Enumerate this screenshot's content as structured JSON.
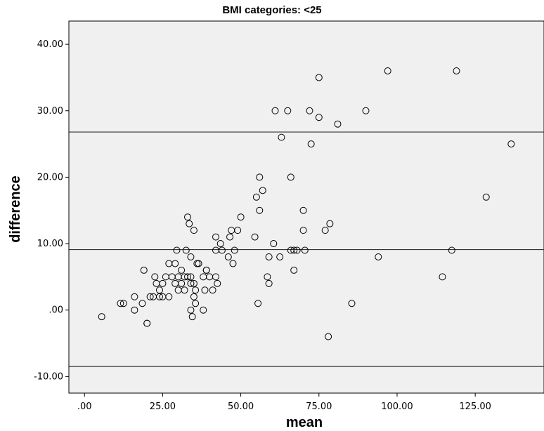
{
  "chart_data": {
    "type": "scatter",
    "title": "BMI categories: <25",
    "xlabel": "mean",
    "ylabel": "difference",
    "xlim": [
      -5,
      147
    ],
    "ylim": [
      -12.5,
      43.5
    ],
    "xticks": [
      0,
      25,
      50,
      75,
      100,
      125
    ],
    "xtick_labels": [
      ".00",
      "25.00",
      "50.00",
      "75.00",
      "100.00",
      "125.00"
    ],
    "yticks": [
      -10,
      0,
      10,
      20,
      30,
      40
    ],
    "ytick_labels": [
      "-10.00",
      ".00",
      "10.00",
      "20.00",
      "30.00",
      "40.00"
    ],
    "grid": false,
    "reference_lines": [
      26.8,
      9.1,
      -8.5
    ],
    "colors": {
      "plot_background": "#f0f0f0",
      "marker_edge": "#000000",
      "reference_line": "#333333"
    },
    "points": [
      [
        5.5,
        -1
      ],
      [
        11.5,
        1
      ],
      [
        12.5,
        1
      ],
      [
        16,
        0
      ],
      [
        16,
        2
      ],
      [
        18.5,
        1
      ],
      [
        19,
        6
      ],
      [
        20,
        -2
      ],
      [
        20,
        -2
      ],
      [
        21,
        2
      ],
      [
        22,
        2
      ],
      [
        22.5,
        5
      ],
      [
        23,
        4
      ],
      [
        24,
        3
      ],
      [
        24,
        2
      ],
      [
        25,
        2
      ],
      [
        25,
        4
      ],
      [
        26,
        5
      ],
      [
        27,
        7
      ],
      [
        27,
        2
      ],
      [
        28,
        5
      ],
      [
        29,
        7
      ],
      [
        29,
        4
      ],
      [
        29.5,
        9
      ],
      [
        30,
        3
      ],
      [
        30,
        5
      ],
      [
        31,
        4
      ],
      [
        31,
        6
      ],
      [
        32,
        3
      ],
      [
        32,
        5
      ],
      [
        32.5,
        9
      ],
      [
        33,
        5
      ],
      [
        33,
        14
      ],
      [
        33.5,
        13
      ],
      [
        34,
        0
      ],
      [
        34,
        5
      ],
      [
        34,
        4
      ],
      [
        34,
        8
      ],
      [
        34.5,
        -1
      ],
      [
        35,
        12
      ],
      [
        35,
        4
      ],
      [
        35,
        2
      ],
      [
        35.5,
        3
      ],
      [
        35.5,
        1
      ],
      [
        36,
        7
      ],
      [
        36.5,
        7
      ],
      [
        38,
        0
      ],
      [
        38,
        5
      ],
      [
        38.5,
        3
      ],
      [
        39,
        6
      ],
      [
        39,
        6
      ],
      [
        40,
        5
      ],
      [
        41,
        3
      ],
      [
        42,
        11
      ],
      [
        42,
        9
      ],
      [
        42,
        5
      ],
      [
        42.5,
        4
      ],
      [
        43.5,
        10
      ],
      [
        44,
        9
      ],
      [
        46,
        8
      ],
      [
        46.5,
        11
      ],
      [
        47,
        12
      ],
      [
        47.5,
        7
      ],
      [
        48,
        9
      ],
      [
        49,
        12
      ],
      [
        50,
        14
      ],
      [
        54.5,
        11
      ],
      [
        55,
        17
      ],
      [
        55.5,
        1
      ],
      [
        56,
        20
      ],
      [
        56,
        15
      ],
      [
        57,
        18
      ],
      [
        58.5,
        5
      ],
      [
        59,
        8
      ],
      [
        59,
        4
      ],
      [
        60.5,
        10
      ],
      [
        61,
        30
      ],
      [
        62.5,
        8
      ],
      [
        63,
        26
      ],
      [
        65,
        30
      ],
      [
        66,
        9
      ],
      [
        66,
        20
      ],
      [
        67,
        9
      ],
      [
        67,
        6
      ],
      [
        68,
        9
      ],
      [
        70,
        15
      ],
      [
        70,
        12
      ],
      [
        70.5,
        9
      ],
      [
        72,
        30
      ],
      [
        72.5,
        25
      ],
      [
        75,
        35
      ],
      [
        75,
        29
      ],
      [
        77,
        12
      ],
      [
        78,
        -4
      ],
      [
        78.5,
        13
      ],
      [
        81,
        28
      ],
      [
        85.5,
        1
      ],
      [
        90,
        30
      ],
      [
        94,
        8
      ],
      [
        97,
        36
      ],
      [
        114.5,
        5
      ],
      [
        117.5,
        9
      ],
      [
        119,
        36
      ],
      [
        128.5,
        17
      ],
      [
        136.5,
        25
      ]
    ]
  }
}
